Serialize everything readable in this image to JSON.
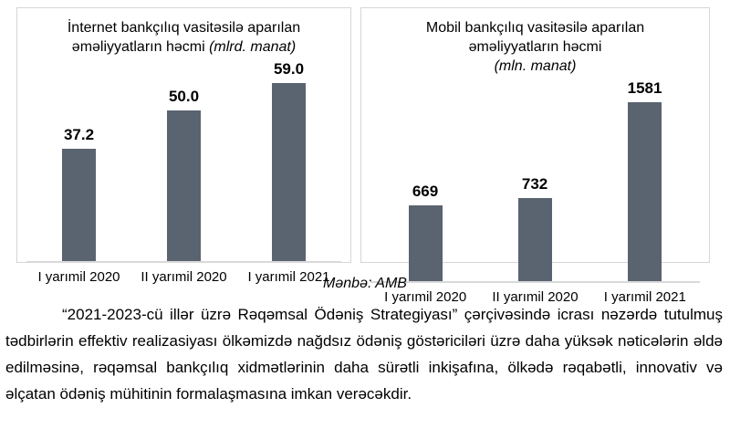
{
  "page": {
    "background": "#ffffff",
    "bar_color": "#5a6370",
    "panel_border_color": "#d6d6d6",
    "axis_color": "#d9d9d9",
    "source_note": "Mənbə: AMB",
    "paragraph": "“2021-2023-cü illər üzrə Rəqəmsal Ödəniş Strategiyası” çərçivəsində icrası nəzərdə tutulmuş tədbirlərin effektiv realizasiyası ölkəmizdə nağdsız ödəniş göstəriciləri üzrə daha yüksək nəticələrin əldə edilməsinə, rəqəmsal bankçılıq xidmətlərinin daha sürətli inkişafına, ölkədə rəqabətli, innovativ və əlçatan ödəniş mühitinin formalaşmasına imkan verəcəkdir."
  },
  "chart_data": [
    {
      "type": "bar",
      "title": "İnternet bankçılıq vasitəsilə aparılan əməliyyatların həcmi",
      "unit_label": "(mlrd. manat)",
      "unit_label_own_line": false,
      "categories": [
        "I yarımil 2020",
        "II yarımil 2020",
        "I yarımil 2021"
      ],
      "values": [
        37.2,
        50.0,
        59.0
      ],
      "value_labels": [
        "37.2",
        "50.0",
        "59.0"
      ],
      "xlabel": "",
      "ylabel": "",
      "ylim": [
        0,
        75
      ],
      "bar_color": "#5a6370",
      "grid": false,
      "legend": false
    },
    {
      "type": "bar",
      "title": "Mobil bankçılıq vasitəsilə aparılan əməliyyatların həcmi",
      "unit_label": "(mln. manat)",
      "unit_label_own_line": true,
      "categories": [
        "I yarımil 2020",
        "II yarımil 2020",
        "I yarımil 2021"
      ],
      "values": [
        669,
        732,
        1581
      ],
      "value_labels": [
        "669",
        "732",
        "1581"
      ],
      "xlabel": "",
      "ylabel": "",
      "ylim": [
        0,
        2000
      ],
      "bar_color": "#5a6370",
      "grid": false,
      "legend": false
    }
  ]
}
